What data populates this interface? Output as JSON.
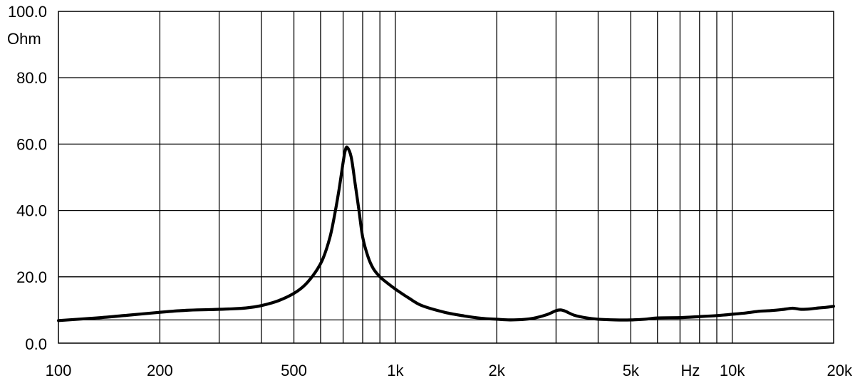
{
  "chart_data": {
    "type": "line",
    "title": "",
    "xlabel": "Hz",
    "ylabel": "Ohm",
    "x_scale": "log",
    "xlim": [
      100,
      20000
    ],
    "ylim": [
      0,
      100
    ],
    "grid": true,
    "x_ticks": [
      {
        "value": 100,
        "label": "100"
      },
      {
        "value": 200,
        "label": "200"
      },
      {
        "value": 500,
        "label": "500"
      },
      {
        "value": 1000,
        "label": "1k"
      },
      {
        "value": 2000,
        "label": "2k"
      },
      {
        "value": 5000,
        "label": "5k"
      },
      {
        "value": 10000,
        "label": "10k"
      },
      {
        "value": 20000,
        "label": "20k"
      }
    ],
    "x_minor_gridlines": [
      300,
      400,
      600,
      700,
      800,
      900,
      3000,
      4000,
      6000,
      7000,
      8000,
      9000
    ],
    "y_ticks": [
      {
        "value": 0,
        "label": "0.0"
      },
      {
        "value": 20,
        "label": "20.0"
      },
      {
        "value": 40,
        "label": "40.0"
      },
      {
        "value": 60,
        "label": "60.0"
      },
      {
        "value": 80,
        "label": "80.0"
      },
      {
        "value": 100,
        "label": "100.0"
      }
    ],
    "y_minor_gridlines": [
      7
    ],
    "series": [
      {
        "color": "#000000",
        "x": [
          100,
          130,
          160,
          200,
          240,
          280,
          320,
          360,
          400,
          450,
          500,
          540,
          580,
          610,
          640,
          660,
          680,
          700,
          710,
          720,
          740,
          760,
          780,
          800,
          830,
          860,
          900,
          950,
          1000,
          1100,
          1200,
          1400,
          1600,
          1800,
          2000,
          2200,
          2500,
          2800,
          3000,
          3100,
          3200,
          3400,
          3700,
          4000,
          4500,
          5000,
          5500,
          6000,
          7000,
          8000,
          9000,
          10000,
          11000,
          12000,
          13000,
          14000,
          15000,
          15500,
          16000,
          17000,
          18000,
          19000,
          20000
        ],
        "y": [
          6.8,
          7.6,
          8.4,
          9.3,
          9.9,
          10.1,
          10.3,
          10.6,
          11.3,
          12.8,
          15.0,
          17.6,
          21.5,
          25.5,
          32.0,
          38.5,
          46.0,
          54.5,
          58.0,
          59.0,
          56.0,
          48.0,
          40.0,
          32.0,
          26.0,
          22.5,
          20.0,
          18.0,
          16.3,
          13.5,
          11.3,
          9.3,
          8.2,
          7.5,
          7.2,
          7.0,
          7.3,
          8.5,
          9.8,
          10.0,
          9.6,
          8.4,
          7.6,
          7.2,
          7.0,
          7.0,
          7.2,
          7.6,
          7.7,
          8.0,
          8.3,
          8.7,
          9.1,
          9.6,
          9.8,
          10.1,
          10.5,
          10.4,
          10.2,
          10.3,
          10.6,
          10.8,
          11.1
        ]
      }
    ]
  }
}
